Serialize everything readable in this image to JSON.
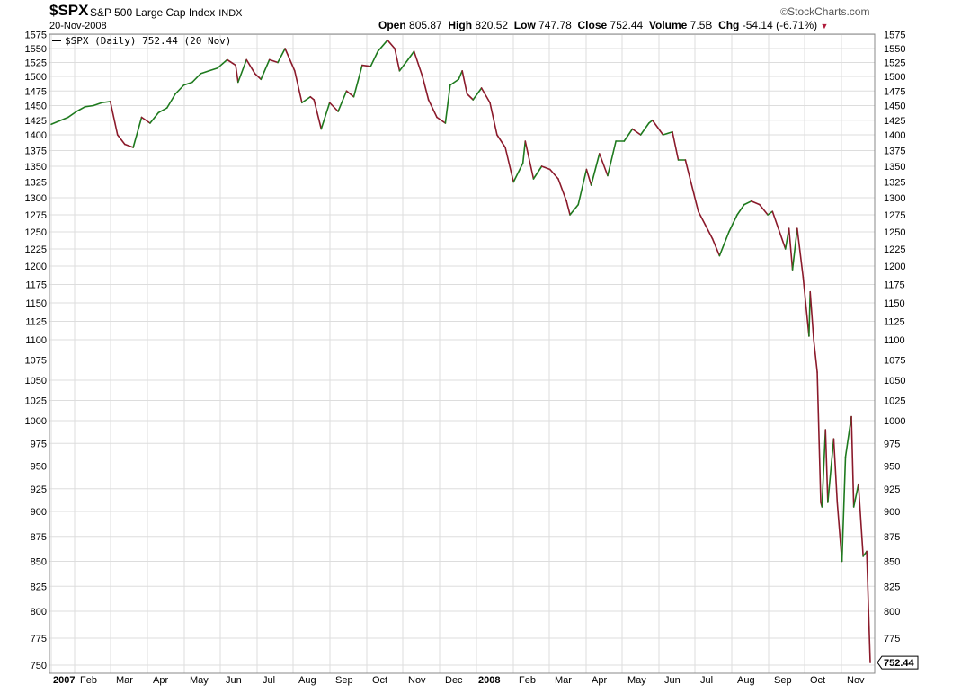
{
  "header": {
    "ticker": "$SPX",
    "description": "S&P 500 Large Cap Index",
    "exchange": "INDX",
    "date": "20-Nov-2008",
    "brand": "StockCharts.com",
    "open_label": "Open",
    "open_value": "805.87",
    "high_label": "High",
    "high_value": "820.52",
    "low_label": "Low",
    "low_value": "747.78",
    "close_label": "Close",
    "close_value": "752.44",
    "volume_label": "Volume",
    "volume_value": "7.5B",
    "chg_label": "Chg",
    "chg_value": "-54.14 (-6.71%)"
  },
  "legend_text": "$SPX (Daily) 752.44 (20 Nov)",
  "last_value_label": "752.44",
  "colors": {
    "up": "#1e7a1e",
    "down": "#8b1a2b",
    "grid": "#dddddd",
    "border": "#888888"
  },
  "chart_data": {
    "type": "line",
    "title": "$SPX S&P 500 Large Cap Index INDX",
    "xlabel": "",
    "ylabel": "",
    "ylim": [
      750,
      1575
    ],
    "grid": true,
    "y_ticks": [
      1575,
      1550,
      1525,
      1500,
      1475,
      1450,
      1425,
      1400,
      1375,
      1350,
      1325,
      1300,
      1275,
      1250,
      1225,
      1200,
      1175,
      1150,
      1125,
      1100,
      1075,
      1050,
      1025,
      1000,
      975,
      950,
      925,
      900,
      875,
      850,
      825,
      800,
      775,
      750
    ],
    "x_tick_labels": [
      "2007",
      "Feb",
      "Mar",
      "Apr",
      "May",
      "Jun",
      "Jul",
      "Aug",
      "Sep",
      "Oct",
      "Nov",
      "Dec",
      "2008",
      "Feb",
      "Mar",
      "Apr",
      "May",
      "Jun",
      "Jul",
      "Aug",
      "Sep",
      "Oct",
      "Nov"
    ],
    "series": [
      {
        "name": "$SPX (Daily)",
        "x": [
          "2007-01-03",
          "2007-01-10",
          "2007-01-17",
          "2007-01-24",
          "2007-01-31",
          "2007-02-07",
          "2007-02-14",
          "2007-02-21",
          "2007-02-27",
          "2007-03-05",
          "2007-03-12",
          "2007-03-19",
          "2007-03-26",
          "2007-04-02",
          "2007-04-09",
          "2007-04-16",
          "2007-04-23",
          "2007-04-30",
          "2007-05-07",
          "2007-05-14",
          "2007-05-21",
          "2007-05-29",
          "2007-06-05",
          "2007-06-07",
          "2007-06-14",
          "2007-06-21",
          "2007-06-26",
          "2007-07-03",
          "2007-07-10",
          "2007-07-16",
          "2007-07-24",
          "2007-07-30",
          "2007-08-06",
          "2007-08-09",
          "2007-08-15",
          "2007-08-22",
          "2007-08-29",
          "2007-09-05",
          "2007-09-11",
          "2007-09-18",
          "2007-09-25",
          "2007-10-01",
          "2007-10-09",
          "2007-10-15",
          "2007-10-19",
          "2007-10-26",
          "2007-10-31",
          "2007-11-07",
          "2007-11-12",
          "2007-11-19",
          "2007-11-26",
          "2007-11-30",
          "2007-12-07",
          "2007-12-10",
          "2007-12-14",
          "2007-12-19",
          "2007-12-26",
          "2008-01-02",
          "2008-01-08",
          "2008-01-15",
          "2008-01-22",
          "2008-01-30",
          "2008-02-01",
          "2008-02-08",
          "2008-02-15",
          "2008-02-22",
          "2008-02-29",
          "2008-03-07",
          "2008-03-10",
          "2008-03-17",
          "2008-03-24",
          "2008-03-28",
          "2008-04-04",
          "2008-04-11",
          "2008-04-18",
          "2008-04-25",
          "2008-05-02",
          "2008-05-09",
          "2008-05-16",
          "2008-05-19",
          "2008-05-28",
          "2008-06-05",
          "2008-06-10",
          "2008-06-16",
          "2008-06-20",
          "2008-06-27",
          "2008-07-03",
          "2008-07-09",
          "2008-07-15",
          "2008-07-23",
          "2008-07-30",
          "2008-08-05",
          "2008-08-11",
          "2008-08-18",
          "2008-08-25",
          "2008-08-29",
          "2008-09-05",
          "2008-09-09",
          "2008-09-12",
          "2008-09-15",
          "2008-09-19",
          "2008-09-24",
          "2008-09-29",
          "2008-09-30",
          "2008-10-03",
          "2008-10-06",
          "2008-10-09",
          "2008-10-10",
          "2008-10-13",
          "2008-10-15",
          "2008-10-20",
          "2008-10-23",
          "2008-10-27",
          "2008-10-30",
          "2008-11-04",
          "2008-11-06",
          "2008-11-10",
          "2008-11-14",
          "2008-11-17",
          "2008-11-20"
        ],
        "y": [
          1418,
          1424,
          1430,
          1440,
          1448,
          1450,
          1455,
          1457,
          1400,
          1385,
          1380,
          1430,
          1420,
          1438,
          1446,
          1470,
          1485,
          1490,
          1505,
          1510,
          1515,
          1530,
          1520,
          1490,
          1530,
          1505,
          1495,
          1530,
          1525,
          1550,
          1510,
          1455,
          1465,
          1460,
          1410,
          1455,
          1440,
          1475,
          1465,
          1520,
          1518,
          1545,
          1565,
          1550,
          1510,
          1530,
          1545,
          1500,
          1460,
          1430,
          1420,
          1485,
          1495,
          1510,
          1470,
          1460,
          1480,
          1455,
          1400,
          1380,
          1325,
          1355,
          1390,
          1330,
          1350,
          1345,
          1330,
          1295,
          1275,
          1290,
          1345,
          1320,
          1370,
          1335,
          1390,
          1390,
          1410,
          1400,
          1420,
          1425,
          1400,
          1405,
          1360,
          1360,
          1330,
          1280,
          1260,
          1240,
          1215,
          1250,
          1275,
          1290,
          1295,
          1290,
          1275,
          1280,
          1245,
          1225,
          1255,
          1195,
          1255,
          1185,
          1105,
          1165,
          1100,
          1060,
          910,
          905,
          990,
          910,
          980,
          910,
          850,
          960,
          1005,
          905,
          930,
          855,
          860,
          752.44
        ]
      }
    ]
  }
}
